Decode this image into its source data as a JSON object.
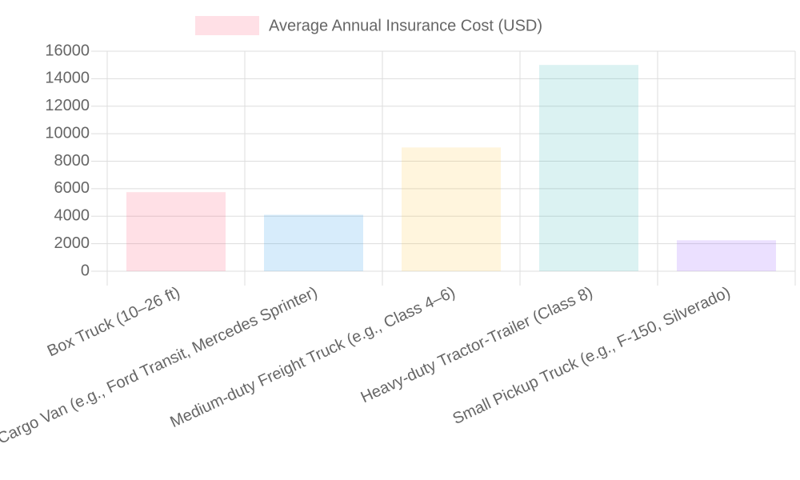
{
  "chart_data": {
    "type": "bar",
    "categories": [
      "Box Truck (10–26 ft)",
      "Cargo Van (e.g., Ford Transit, Mercedes Sprinter)",
      "Medium-duty Freight Truck (e.g., Class 4–6)",
      "Heavy-duty Tractor-Trailer (Class 8)",
      "Small Pickup Truck (e.g., F-150, Silverado)"
    ],
    "series": [
      {
        "name": "Average Annual Insurance Cost (USD)",
        "color": "rgba(255,99,132,0.2)",
        "colors": [
          "rgba(255,99,132,0.2)",
          "rgba(54,162,235,0.2)",
          "rgba(255,206,86,0.2)",
          "rgba(75,192,192,0.2)",
          "rgba(153,102,255,0.2)"
        ],
        "values": [
          5750,
          4100,
          9000,
          15000,
          2250
        ]
      }
    ],
    "ylim": [
      0,
      16000
    ],
    "yticks": [
      0,
      2000,
      4000,
      6000,
      8000,
      10000,
      12000,
      14000,
      16000
    ],
    "grid": true,
    "legend": "top"
  }
}
